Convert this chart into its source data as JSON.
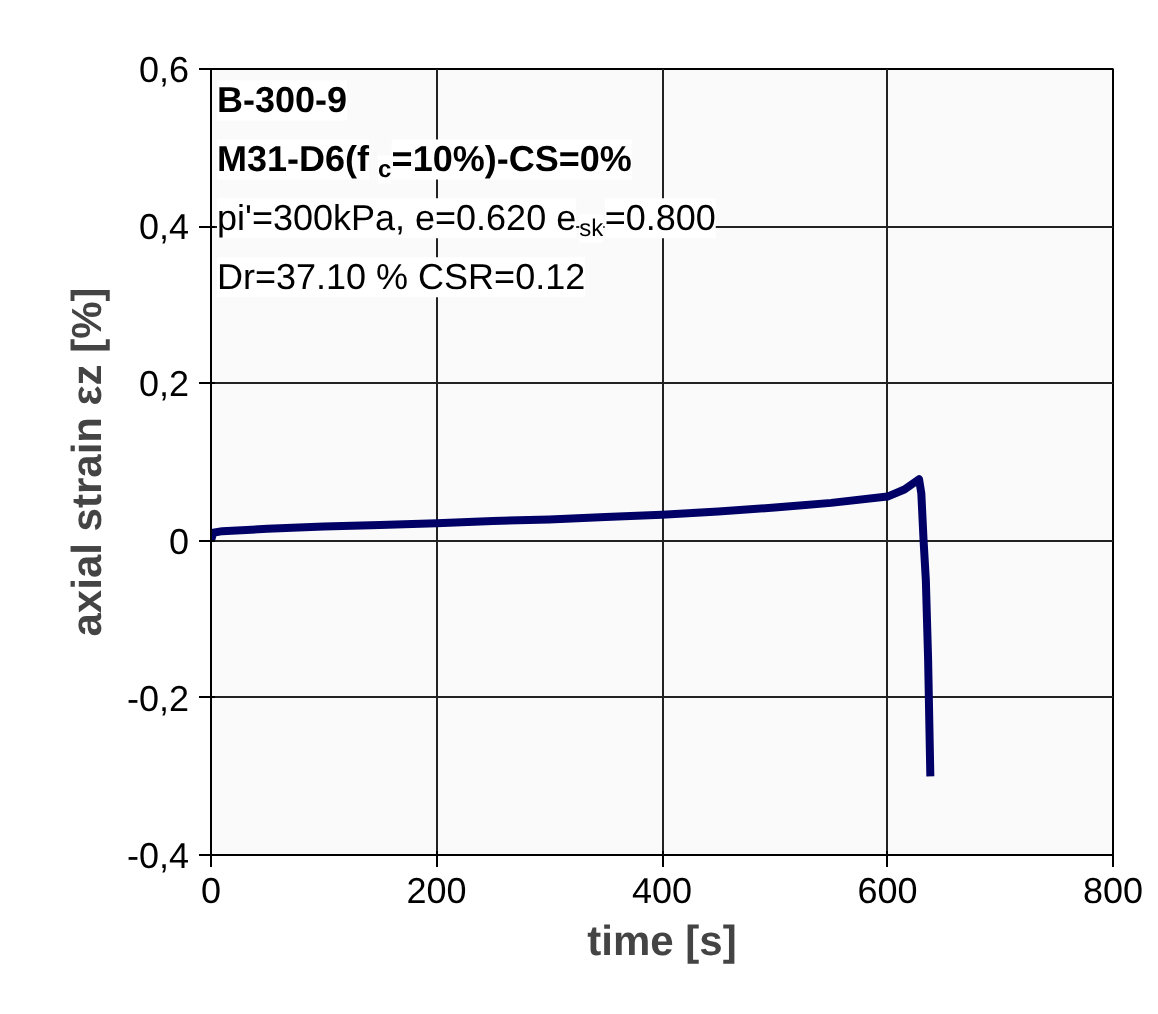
{
  "chart_data": {
    "type": "line",
    "xlabel": "time [s]",
    "ylabel": "axial strain εz [%]",
    "annotations": [
      "B-300-9",
      "M31-D6(f$_{c}$=10%)-CS=0%",
      "pi'=300kPa, e=0.620 e$_{sk}$=0.800",
      "Dr=37.10 % CSR=0.12"
    ],
    "series": [
      {
        "color": "#000066",
        "x": [
          0,
          2,
          10,
          50,
          100,
          150,
          200,
          250,
          300,
          350,
          400,
          450,
          500,
          550,
          600,
          615,
          628,
          630,
          632,
          634,
          636,
          638
        ],
        "values": [
          0.0,
          0.01,
          0.012,
          0.015,
          0.018,
          0.02,
          0.022,
          0.025,
          0.027,
          0.03,
          0.033,
          0.037,
          0.042,
          0.048,
          0.056,
          0.065,
          0.078,
          0.06,
          0.0,
          -0.05,
          -0.15,
          -0.3
        ]
      }
    ],
    "xlim": [
      0,
      800
    ],
    "xticks": [
      0,
      200,
      400,
      600,
      800
    ],
    "ylim": [
      -0.4,
      0.6
    ],
    "yticks": [
      {
        "value": -0.4,
        "label": "-0,4"
      },
      {
        "value": -0.2,
        "label": "-0,2"
      },
      0,
      {
        "value": 0.2,
        "label": "0,2"
      },
      {
        "value": 0.4,
        "label": "0,4"
      },
      {
        "value": 0.6,
        "label": "0,6"
      }
    ],
    "grid": true,
    "line_style": "solid",
    "marker": "none"
  }
}
